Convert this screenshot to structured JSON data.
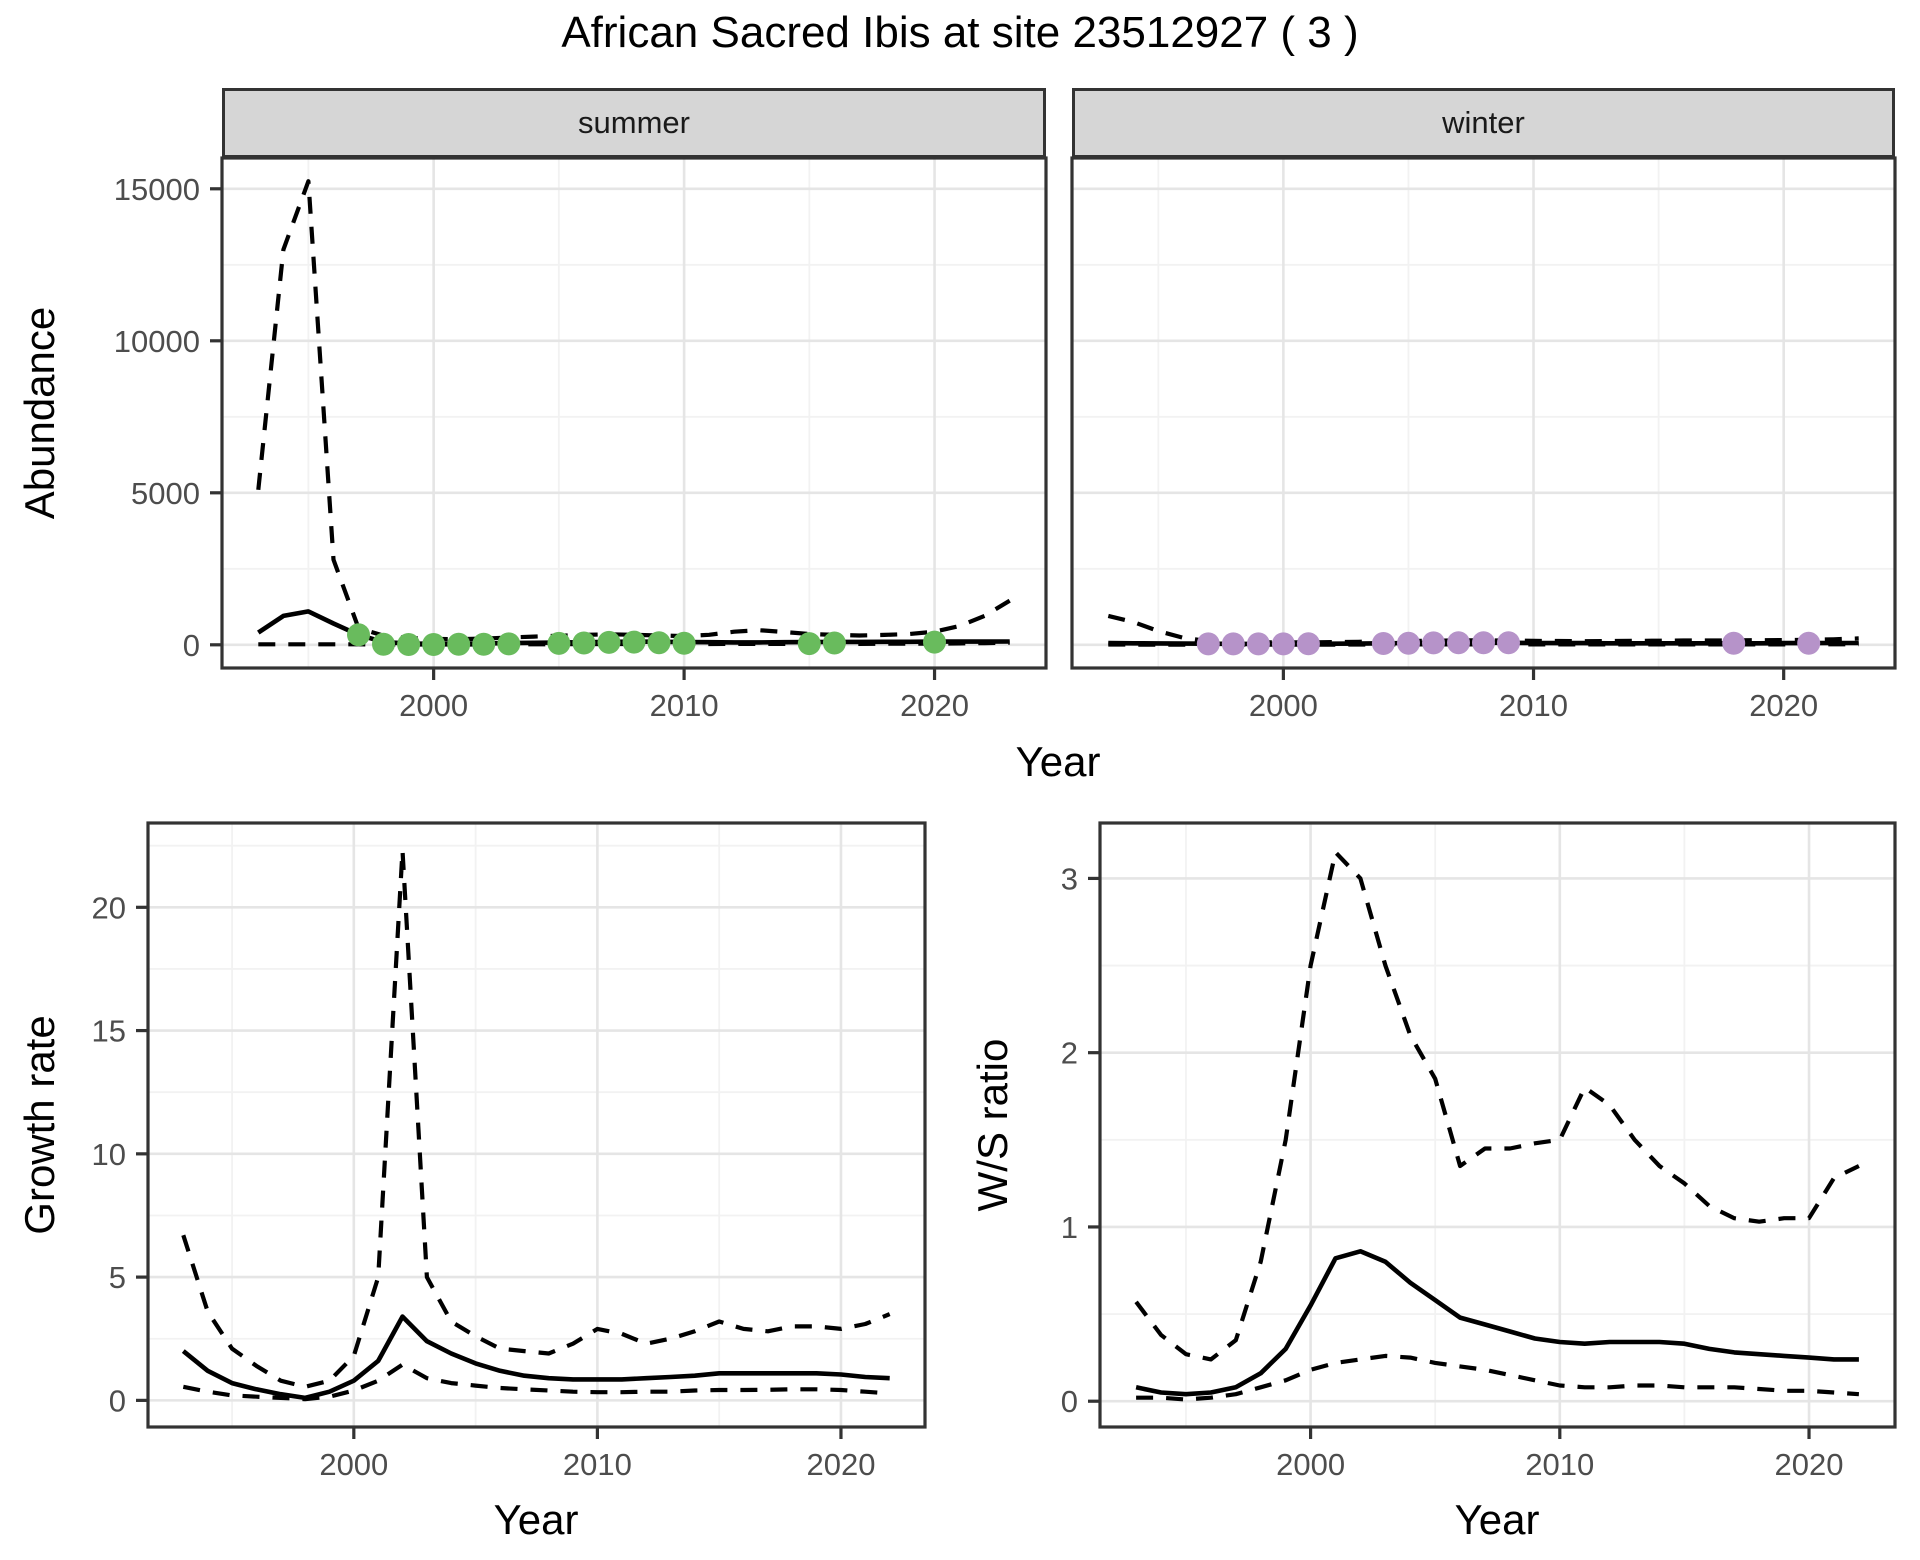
{
  "title": "African Sacred Ibis at site 23512927 ( 3 )",
  "facets": [
    "summer",
    "winter"
  ],
  "labels": {
    "abundance_y": "Abundance",
    "top_x": "Year",
    "growth_y": "Growth rate",
    "growth_x": "Year",
    "ws_y": "W/S ratio",
    "ws_x": "Year"
  },
  "colors": {
    "summer_point": "#69BB5D",
    "winter_point": "#B693C9",
    "line": "#000000",
    "axis_text": "#4D4D4D",
    "tick_mark": "#333333",
    "panel_border": "#333333",
    "strip_fill": "#D6D6D6",
    "grid_major": "#E5E5E5",
    "grid_minor": "#F2F2F2"
  },
  "chart_data": [
    {
      "id": "summer",
      "type": "line",
      "facet": "summer",
      "ylabel": "Abundance",
      "xlabel": "Year",
      "x": [
        1993,
        1994,
        1995,
        1996,
        1997,
        1998,
        1999,
        2000,
        2001,
        2002,
        2003,
        2004,
        2005,
        2006,
        2007,
        2008,
        2009,
        2010,
        2011,
        2012,
        2013,
        2014,
        2015,
        2016,
        2017,
        2018,
        2019,
        2020,
        2021,
        2022,
        2023
      ],
      "series": [
        {
          "name": "upper_ci",
          "style": "dashed",
          "values": [
            5100,
            13000,
            15250,
            2800,
            550,
            300,
            220,
            195,
            185,
            205,
            240,
            270,
            300,
            325,
            345,
            330,
            305,
            285,
            330,
            430,
            480,
            420,
            355,
            325,
            305,
            325,
            355,
            430,
            620,
            950,
            1450
          ]
        },
        {
          "name": "lower_ci",
          "style": "dashed",
          "values": [
            15,
            15,
            15,
            15,
            15,
            10,
            10,
            10,
            10,
            10,
            15,
            15,
            20,
            20,
            25,
            25,
            25,
            25,
            25,
            30,
            30,
            30,
            30,
            30,
            30,
            35,
            35,
            40,
            45,
            55,
            70
          ]
        },
        {
          "name": "median",
          "style": "solid",
          "values": [
            400,
            950,
            1100,
            700,
            330,
            90,
            40,
            35,
            35,
            45,
            55,
            65,
            75,
            85,
            95,
            105,
            100,
            90,
            85,
            80,
            80,
            85,
            90,
            95,
            95,
            100,
            100,
            105,
            105,
            105,
            110
          ]
        }
      ],
      "points": {
        "color": "#69BB5D",
        "years": [
          1997,
          1998,
          1999,
          2000,
          2001,
          2002,
          2003,
          2005,
          2006,
          2007,
          2008,
          2009,
          2010,
          2015,
          2016,
          2020
        ],
        "values": [
          330,
          20,
          10,
          10,
          15,
          20,
          30,
          45,
          60,
          80,
          90,
          70,
          50,
          40,
          60,
          90
        ]
      },
      "xlim": [
        1991.55,
        2024.45
      ],
      "ylim": [
        -763,
        16013
      ],
      "xticks": [
        2000,
        2010,
        2020
      ],
      "x_minor": [
        1995,
        2005,
        2015
      ],
      "yticks": [
        0,
        5000,
        10000,
        15000
      ],
      "y_minor": [
        2500,
        7500,
        12500
      ],
      "show_y_axis": true,
      "grid": true,
      "legend": "none"
    },
    {
      "id": "winter",
      "type": "line",
      "facet": "winter",
      "ylabel": "Abundance",
      "xlabel": "Year",
      "x": [
        1993,
        1994,
        1995,
        1996,
        1997,
        1998,
        1999,
        2000,
        2001,
        2002,
        2003,
        2004,
        2005,
        2006,
        2007,
        2008,
        2009,
        2010,
        2011,
        2012,
        2013,
        2014,
        2015,
        2016,
        2017,
        2018,
        2019,
        2020,
        2021,
        2022,
        2023
      ],
      "series": [
        {
          "name": "upper_ci",
          "style": "dashed",
          "values": [
            950,
            750,
            450,
            230,
            120,
            95,
            85,
            80,
            80,
            90,
            100,
            115,
            125,
            135,
            145,
            145,
            140,
            130,
            125,
            120,
            125,
            130,
            135,
            140,
            140,
            145,
            150,
            155,
            165,
            180,
            210
          ]
        },
        {
          "name": "lower_ci",
          "style": "dashed",
          "values": [
            10,
            8,
            8,
            8,
            8,
            8,
            8,
            8,
            8,
            8,
            10,
            10,
            12,
            12,
            14,
            14,
            14,
            12,
            12,
            12,
            12,
            12,
            12,
            12,
            12,
            12,
            14,
            14,
            16,
            18,
            20
          ]
        },
        {
          "name": "median",
          "style": "solid",
          "values": [
            55,
            50,
            45,
            40,
            35,
            30,
            30,
            30,
            30,
            35,
            40,
            50,
            60,
            65,
            70,
            70,
            65,
            60,
            55,
            55,
            50,
            50,
            50,
            50,
            50,
            50,
            50,
            55,
            55,
            60,
            60
          ]
        }
      ],
      "points": {
        "color": "#B693C9",
        "years": [
          1997,
          1998,
          1999,
          2000,
          2001,
          2004,
          2005,
          2006,
          2007,
          2008,
          2009,
          2018,
          2021
        ],
        "values": [
          30,
          30,
          30,
          30,
          32,
          42,
          52,
          62,
          66,
          70,
          66,
          52,
          52
        ]
      },
      "xlim": [
        1991.55,
        2024.45
      ],
      "ylim": [
        -763,
        16013
      ],
      "xticks": [
        2000,
        2010,
        2020
      ],
      "x_minor": [
        1995,
        2005,
        2015
      ],
      "yticks": [
        0,
        5000,
        10000,
        15000
      ],
      "y_minor": [
        2500,
        7500,
        12500
      ],
      "show_y_axis": false,
      "grid": true,
      "legend": "none"
    },
    {
      "id": "growth",
      "type": "line",
      "ylabel": "Growth rate",
      "xlabel": "Year",
      "x": [
        1993,
        1994,
        1995,
        1996,
        1997,
        1998,
        1999,
        2000,
        2001,
        2002,
        2003,
        2004,
        2005,
        2006,
        2007,
        2008,
        2009,
        2010,
        2011,
        2012,
        2013,
        2014,
        2015,
        2016,
        2017,
        2018,
        2019,
        2020,
        2021,
        2022
      ],
      "series": [
        {
          "name": "upper_ci",
          "style": "dashed",
          "values": [
            6.7,
            3.6,
            2.1,
            1.4,
            0.8,
            0.55,
            0.8,
            1.8,
            5.0,
            22.3,
            5.0,
            3.2,
            2.6,
            2.1,
            2.0,
            1.9,
            2.3,
            2.9,
            2.7,
            2.3,
            2.5,
            2.8,
            3.2,
            2.9,
            2.8,
            3.0,
            3.0,
            2.9,
            3.1,
            3.5
          ]
        },
        {
          "name": "lower_ci",
          "style": "dashed",
          "values": [
            0.55,
            0.35,
            0.2,
            0.15,
            0.1,
            0.05,
            0.15,
            0.4,
            0.8,
            1.45,
            0.9,
            0.7,
            0.6,
            0.5,
            0.45,
            0.4,
            0.35,
            0.33,
            0.33,
            0.35,
            0.35,
            0.4,
            0.42,
            0.42,
            0.43,
            0.45,
            0.45,
            0.42,
            0.35,
            0.28
          ]
        },
        {
          "name": "median",
          "style": "solid",
          "values": [
            2.0,
            1.2,
            0.7,
            0.45,
            0.25,
            0.1,
            0.35,
            0.8,
            1.6,
            3.4,
            2.4,
            1.9,
            1.5,
            1.2,
            1.0,
            0.9,
            0.85,
            0.85,
            0.85,
            0.9,
            0.95,
            1.0,
            1.1,
            1.1,
            1.1,
            1.1,
            1.1,
            1.05,
            0.95,
            0.9
          ]
        }
      ],
      "xlim": [
        1991.55,
        2023.45
      ],
      "ylim": [
        -1.08,
        23.42
      ],
      "xticks": [
        2000,
        2010,
        2020
      ],
      "x_minor": [
        1995,
        2005,
        2015
      ],
      "yticks": [
        0,
        5,
        10,
        15,
        20
      ],
      "y_minor": [
        2.5,
        7.5,
        12.5,
        17.5,
        22.5
      ],
      "show_y_axis": true,
      "grid": true,
      "legend": "none"
    },
    {
      "id": "ws",
      "type": "line",
      "ylabel": "W/S ratio",
      "xlabel": "Year",
      "x": [
        1993,
        1994,
        1995,
        1996,
        1997,
        1998,
        1999,
        2000,
        2001,
        2002,
        2003,
        2004,
        2005,
        2006,
        2007,
        2008,
        2009,
        2010,
        2011,
        2012,
        2013,
        2014,
        2015,
        2016,
        2017,
        2018,
        2019,
        2020,
        2021,
        2022
      ],
      "series": [
        {
          "name": "upper_ci",
          "style": "dashed",
          "values": [
            0.57,
            0.38,
            0.27,
            0.24,
            0.35,
            0.8,
            1.5,
            2.5,
            3.15,
            3.0,
            2.5,
            2.1,
            1.85,
            1.35,
            1.45,
            1.45,
            1.48,
            1.5,
            1.8,
            1.7,
            1.5,
            1.35,
            1.25,
            1.12,
            1.05,
            1.03,
            1.05,
            1.05,
            1.28,
            1.35
          ]
        },
        {
          "name": "lower_ci",
          "style": "dashed",
          "values": [
            0.02,
            0.02,
            0.01,
            0.02,
            0.04,
            0.08,
            0.12,
            0.18,
            0.22,
            0.24,
            0.26,
            0.25,
            0.22,
            0.2,
            0.18,
            0.15,
            0.12,
            0.09,
            0.08,
            0.08,
            0.09,
            0.09,
            0.08,
            0.08,
            0.08,
            0.07,
            0.06,
            0.06,
            0.05,
            0.04
          ]
        },
        {
          "name": "median",
          "style": "solid",
          "values": [
            0.08,
            0.05,
            0.04,
            0.05,
            0.08,
            0.16,
            0.3,
            0.55,
            0.82,
            0.86,
            0.8,
            0.68,
            0.58,
            0.48,
            0.44,
            0.4,
            0.36,
            0.34,
            0.33,
            0.34,
            0.34,
            0.34,
            0.33,
            0.3,
            0.28,
            0.27,
            0.26,
            0.25,
            0.24,
            0.24
          ]
        }
      ],
      "xlim": [
        1991.55,
        2023.45
      ],
      "ylim": [
        -0.148,
        3.318
      ],
      "xticks": [
        2000,
        2010,
        2020
      ],
      "x_minor": [
        1995,
        2005,
        2015
      ],
      "yticks": [
        0,
        1,
        2,
        3
      ],
      "y_minor": [
        0.5,
        1.5,
        2.5
      ],
      "show_y_axis": true,
      "grid": true,
      "legend": "none"
    }
  ]
}
